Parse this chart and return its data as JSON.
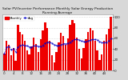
{
  "title": "Solar PV/Inverter Performance Monthly Solar Energy Production Running Average",
  "bar_values": [
    32,
    55,
    48,
    28,
    42,
    18,
    85,
    72,
    68,
    55,
    38,
    30,
    45,
    62,
    50,
    35,
    58,
    75,
    90,
    80,
    55,
    28,
    15,
    35,
    52,
    70,
    65,
    48,
    60,
    85,
    95,
    88,
    62,
    40,
    22,
    42,
    58,
    72,
    80,
    75,
    55,
    38,
    20,
    30,
    55,
    68,
    78,
    100
  ],
  "running_avg": [
    32,
    43,
    45,
    39,
    41,
    35,
    44,
    47,
    48,
    47,
    46,
    44,
    44,
    46,
    46,
    45,
    45,
    47,
    51,
    53,
    53,
    51,
    48,
    47,
    47,
    48,
    50,
    50,
    51,
    53,
    56,
    58,
    58,
    57,
    55,
    54,
    54,
    55,
    57,
    58,
    58,
    57,
    54,
    52,
    52,
    53,
    55,
    60
  ],
  "bar_color": "#ee0000",
  "avg_color": "#0000cc",
  "background_color": "#d8d8d8",
  "plot_bg_color": "#ffffff",
  "grid_color": "#bbbbbb",
  "ylim": [
    0,
    105
  ],
  "yticks": [
    0,
    20,
    40,
    60,
    80,
    100
  ],
  "title_fontsize": 3.2,
  "tick_fontsize": 3.0,
  "legend_fontsize": 2.8
}
